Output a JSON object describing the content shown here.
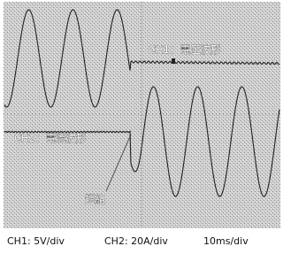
{
  "screen": {
    "ch1_label": "CH1：電圧波形",
    "ch2_label": "CH2：電流波形",
    "annotation": "短絡"
  },
  "footer": {
    "ch1_scale": "CH1: 5V/div",
    "ch2_scale": "CH2: 20A/div",
    "time_scale": "10ms/div"
  }
}
